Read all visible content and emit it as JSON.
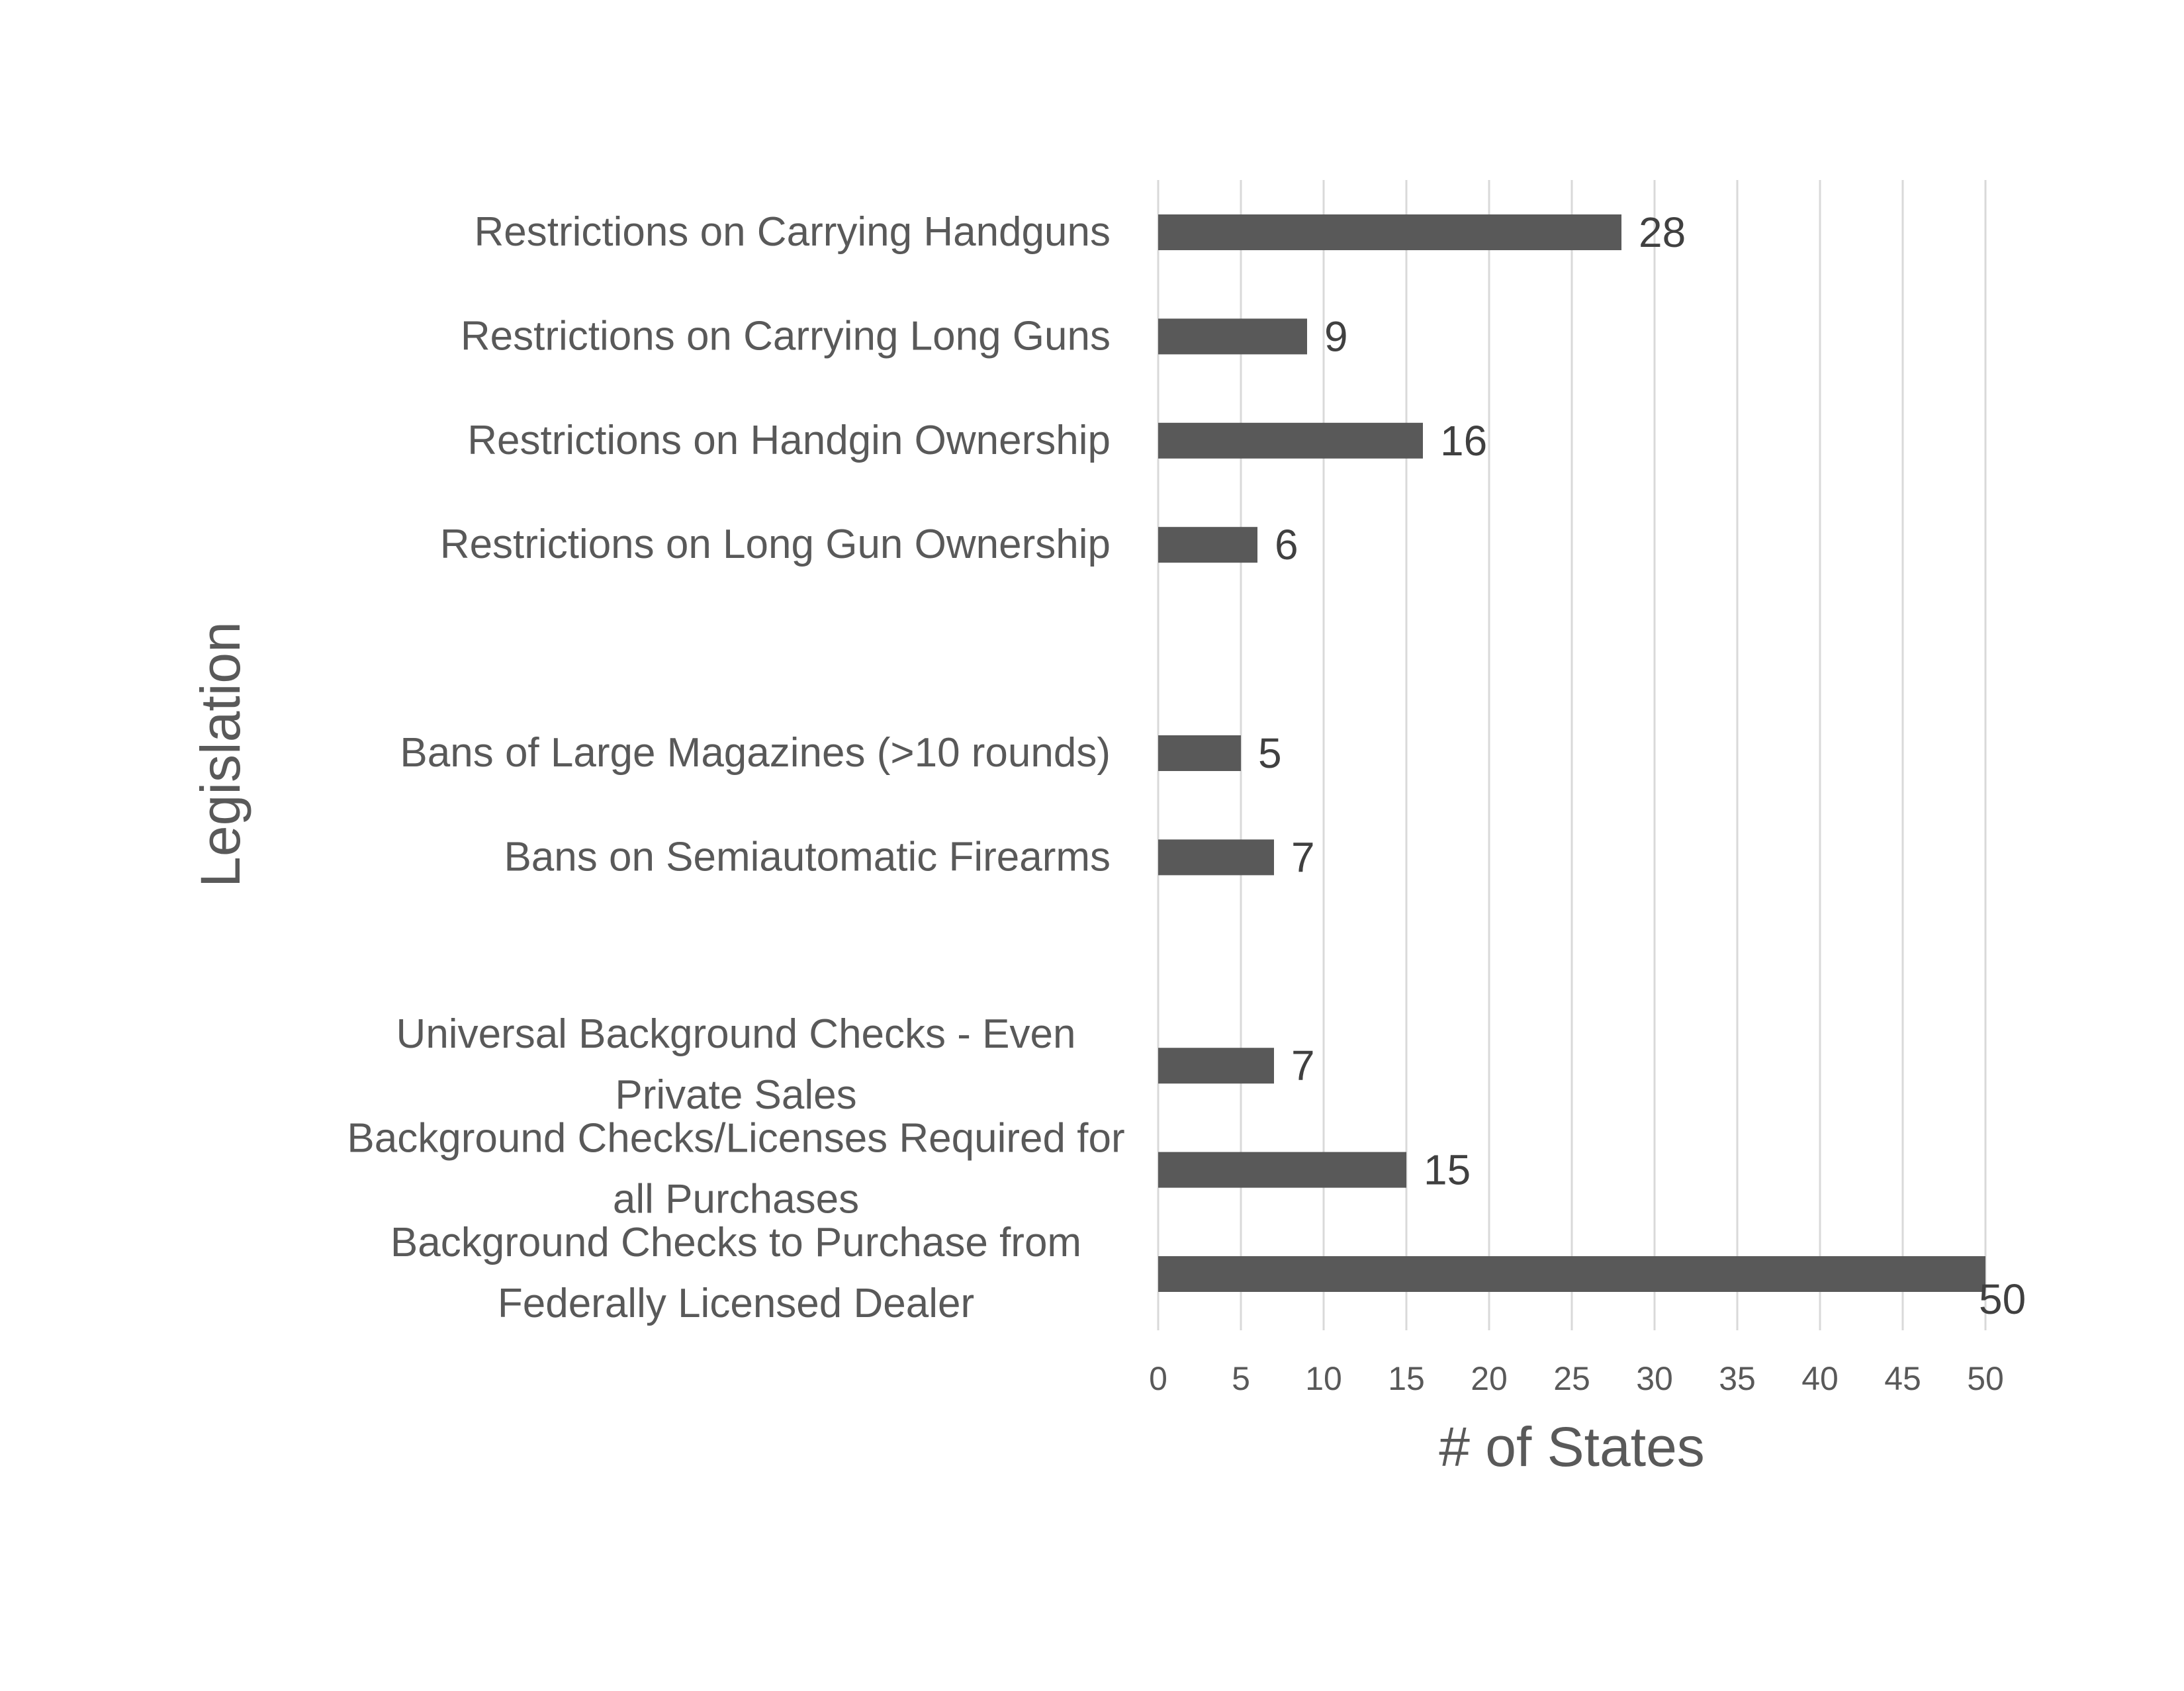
{
  "chart_data": {
    "type": "bar",
    "orientation": "horizontal",
    "title": "",
    "xlabel": "# of States",
    "ylabel": "Legislation",
    "xlim": [
      0,
      50
    ],
    "xticks": [
      0,
      5,
      10,
      15,
      20,
      25,
      30,
      35,
      40,
      45,
      50
    ],
    "grid": "vertical",
    "legend": "none",
    "bar_color": "#595959",
    "gridline_color": "#d9d9d9",
    "categories": [
      [
        "Restrictions on Carrying Handguns"
      ],
      [
        "Restrictions on Carrying Long Guns"
      ],
      [
        "Restrictions on Handgin Ownership"
      ],
      [
        "Restrictions on Long Gun Ownership"
      ],
      [],
      [
        "Bans of Large Magazines (>10 rounds)"
      ],
      [
        "Bans on Semiautomatic Firearms"
      ],
      [],
      [
        "Universal Background Checks - Even",
        "Private Sales"
      ],
      [
        "Background Checks/Licenses Required for",
        "all Purchases"
      ],
      [
        "Background Checks to Purchase from",
        "Federally Licensed Dealer"
      ]
    ],
    "values": [
      28,
      9,
      16,
      6,
      null,
      5,
      7,
      null,
      7,
      15,
      50
    ],
    "data_labels": [
      "28",
      "9",
      "16",
      "6",
      "",
      "5",
      "7",
      "",
      "7",
      "15",
      "50"
    ]
  }
}
